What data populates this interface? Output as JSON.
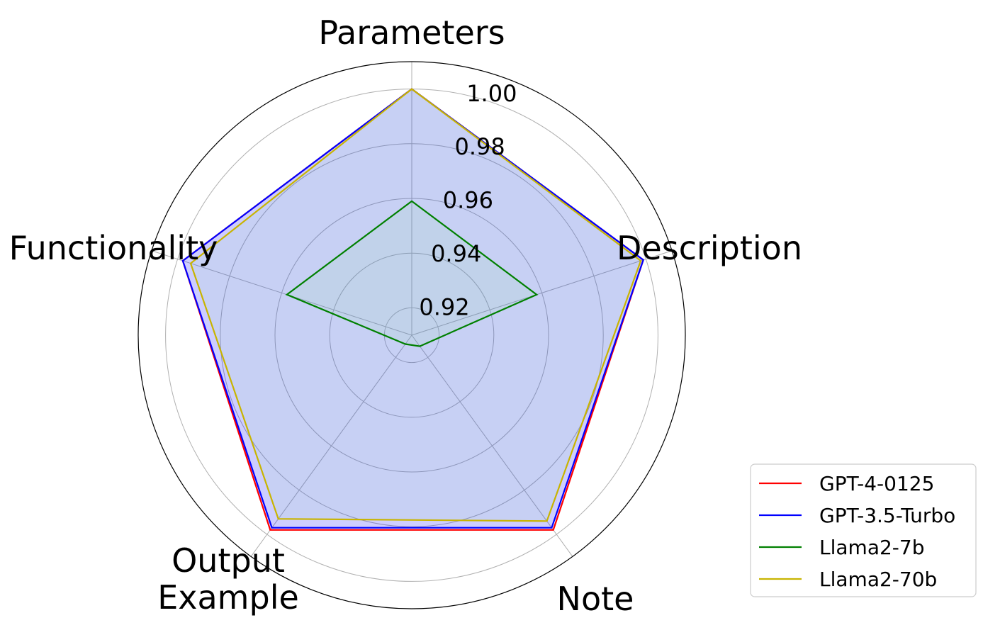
{
  "chart_data": {
    "type": "radar",
    "axes": [
      {
        "label_lines": [
          "Parameters"
        ]
      },
      {
        "label_lines": [
          "Description"
        ]
      },
      {
        "label_lines": [
          "Note"
        ]
      },
      {
        "label_lines": [
          "Output",
          "Example"
        ]
      },
      {
        "label_lines": [
          "Functionality"
        ]
      }
    ],
    "radial_range": [
      0.91,
      1.01
    ],
    "radial_ticks": [
      0.92,
      0.94,
      0.96,
      0.98,
      1.0
    ],
    "radial_tick_labels": [
      "0.92",
      "0.94",
      "0.96",
      "0.98",
      "1.00"
    ],
    "grid": true,
    "legend_position": "lower-right",
    "series": [
      {
        "name": "GPT-4-0125",
        "color": "#ff0000",
        "fill": "#0000ff",
        "values": [
          1.0,
          0.999,
          0.998,
          0.998,
          0.998
        ]
      },
      {
        "name": "GPT-3.5-Turbo",
        "color": "#0000ff",
        "fill": "#0000ff",
        "values": [
          1.0,
          0.999,
          0.997,
          0.997,
          0.998
        ]
      },
      {
        "name": "Llama2-7b",
        "color": "#008000",
        "fill": "#90ee90",
        "values": [
          0.959,
          0.958,
          0.915,
          0.914,
          0.958
        ]
      },
      {
        "name": "Llama2-70b",
        "color": "#c8b400",
        "fill": "#90ee90",
        "values": [
          1.0,
          0.998,
          0.994,
          0.993,
          0.995
        ]
      }
    ]
  }
}
